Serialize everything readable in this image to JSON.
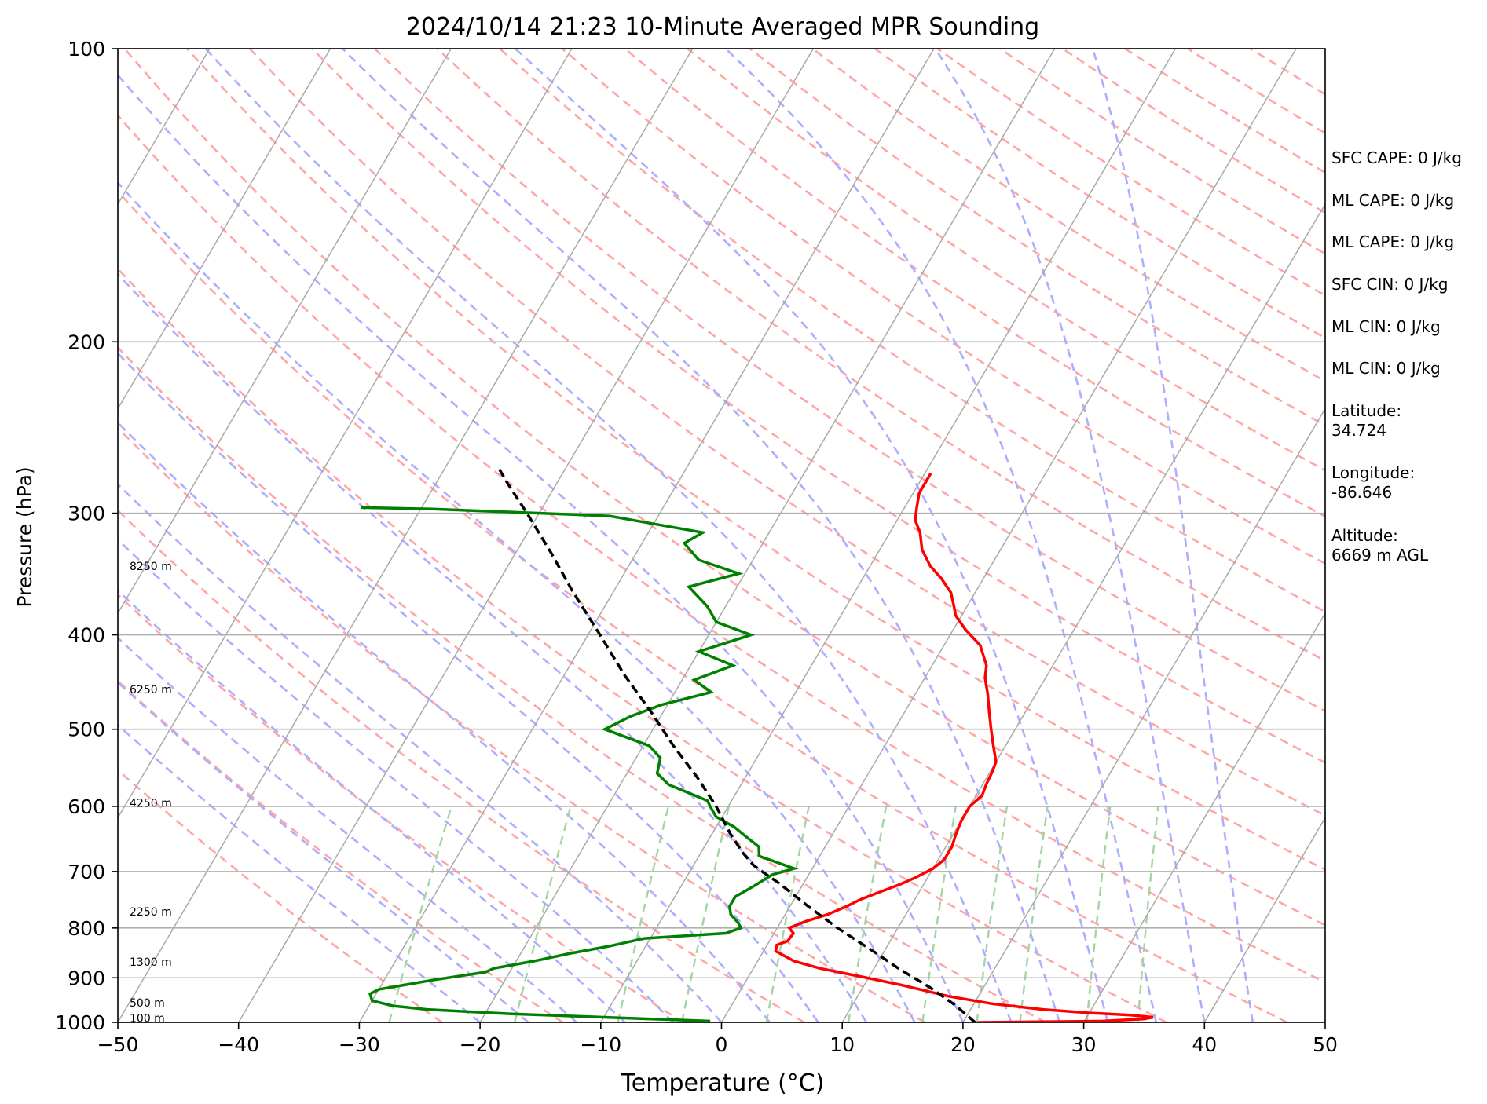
{
  "chart_data": {
    "type": "line",
    "title": "2024/10/14 21:23 10-Minute Averaged MPR Sounding",
    "xlabel": "Temperature (°C)",
    "ylabel": "Pressure (hPa)",
    "xlim": [
      -50,
      50
    ],
    "ylim": [
      1000,
      100
    ],
    "y_scale": "log",
    "skew": "skew-T (isotherms slanted)",
    "grid": true,
    "x_ticks": [
      "−50",
      "−40",
      "−30",
      "−20",
      "−10",
      "0",
      "10",
      "20",
      "30",
      "40",
      "50"
    ],
    "x_tick_values": [
      -50,
      -40,
      -30,
      -20,
      -10,
      0,
      10,
      20,
      30,
      40,
      50
    ],
    "y_ticks": [
      "100",
      "200",
      "300",
      "400",
      "500",
      "600",
      "700",
      "800",
      "900",
      "1000"
    ],
    "y_tick_values": [
      100,
      200,
      300,
      400,
      500,
      600,
      700,
      800,
      900,
      1000
    ],
    "colors": {
      "temperature": "#ff0000",
      "dewpoint": "#008000",
      "parcel": "#000000",
      "isotherm": "#a9a9a9",
      "dry_adiabat": "#ffa7a7",
      "moist_adiabat": "#aeaeff",
      "mixing_ratio": "#a3d5a3"
    },
    "series": [
      {
        "key": "temperature",
        "values": [
          [
            1000,
            21.2
          ],
          [
            997,
            31.5
          ],
          [
            992,
            34.8
          ],
          [
            988,
            35.5
          ],
          [
            983,
            33.5
          ],
          [
            978,
            30.0
          ],
          [
            970,
            26.0
          ],
          [
            957,
            21.5
          ],
          [
            940,
            17.5
          ],
          [
            915,
            13.0
          ],
          [
            896,
            9.0
          ],
          [
            880,
            5.5
          ],
          [
            865,
            3.0
          ],
          [
            845,
            1.0
          ],
          [
            833,
            0.8
          ],
          [
            825,
            1.5
          ],
          [
            810,
            1.6
          ],
          [
            800,
            1.0
          ],
          [
            788,
            2.0
          ],
          [
            775,
            3.5
          ],
          [
            760,
            4.7
          ],
          [
            748,
            5.5
          ],
          [
            737,
            6.5
          ],
          [
            722,
            8.0
          ],
          [
            710,
            9.0
          ],
          [
            695,
            10.0
          ],
          [
            680,
            10.5
          ],
          [
            660,
            10.5
          ],
          [
            640,
            10.2
          ],
          [
            620,
            10.0
          ],
          [
            600,
            10.0
          ],
          [
            585,
            10.5
          ],
          [
            570,
            10.3
          ],
          [
            555,
            10.2
          ],
          [
            540,
            10.0
          ],
          [
            520,
            9.0
          ],
          [
            500,
            8.0
          ],
          [
            480,
            7.0
          ],
          [
            460,
            6.0
          ],
          [
            443,
            5.0
          ],
          [
            430,
            4.5
          ],
          [
            410,
            3.0
          ],
          [
            395,
            1.0
          ],
          [
            382,
            -0.5
          ],
          [
            375,
            -1.0
          ],
          [
            362,
            -2.0
          ],
          [
            350,
            -3.5
          ],
          [
            340,
            -5.0
          ],
          [
            327,
            -6.5
          ],
          [
            314,
            -7.5
          ],
          [
            305,
            -8.5
          ],
          [
            296,
            -9.0
          ],
          [
            286,
            -9.5
          ],
          [
            273,
            -9.5
          ]
        ]
      },
      {
        "key": "dewpoint",
        "values": [
          [
            1000,
            -1.7
          ],
          [
            999,
            -3.0
          ],
          [
            997,
            -1.0
          ],
          [
            990,
            -8.0
          ],
          [
            980,
            -18.0
          ],
          [
            970,
            -25.0
          ],
          [
            962,
            -28.0
          ],
          [
            950,
            -30.0
          ],
          [
            935,
            -30.5
          ],
          [
            925,
            -30.0
          ],
          [
            905,
            -26.0
          ],
          [
            888,
            -22.0
          ],
          [
            880,
            -21.5
          ],
          [
            865,
            -18.5
          ],
          [
            850,
            -16.0
          ],
          [
            835,
            -13.0
          ],
          [
            820,
            -10.5
          ],
          [
            810,
            -4.0
          ],
          [
            800,
            -3.0
          ],
          [
            790,
            -3.5
          ],
          [
            775,
            -4.5
          ],
          [
            760,
            -5.0
          ],
          [
            743,
            -5.0
          ],
          [
            725,
            -4.0
          ],
          [
            705,
            -3.0
          ],
          [
            695,
            -1.5
          ],
          [
            675,
            -5.0
          ],
          [
            660,
            -5.5
          ],
          [
            645,
            -7.0
          ],
          [
            630,
            -8.5
          ],
          [
            615,
            -10.5
          ],
          [
            600,
            -11.5
          ],
          [
            592,
            -12.0
          ],
          [
            570,
            -16.0
          ],
          [
            555,
            -17.5
          ],
          [
            535,
            -18.0
          ],
          [
            520,
            -19.5
          ],
          [
            500,
            -24.0
          ],
          [
            485,
            -22.5
          ],
          [
            472,
            -20.5
          ],
          [
            458,
            -17.0
          ],
          [
            445,
            -19.0
          ],
          [
            430,
            -16.5
          ],
          [
            416,
            -20.0
          ],
          [
            400,
            -16.5
          ],
          [
            388,
            -20.0
          ],
          [
            374,
            -21.5
          ],
          [
            357,
            -24.0
          ],
          [
            346,
            -20.5
          ],
          [
            335,
            -24.5
          ],
          [
            322,
            -26.5
          ],
          [
            314,
            -25.5
          ],
          [
            302,
            -34.0
          ],
          [
            297,
            -49.0
          ],
          [
            296,
            -55.0
          ]
        ]
      },
      {
        "key": "parcel",
        "values": [
          [
            1000,
            21.0
          ],
          [
            960,
            18.5
          ],
          [
            920,
            15.5
          ],
          [
            880,
            12.0
          ],
          [
            850,
            9.5
          ],
          [
            800,
            5.0
          ],
          [
            760,
            1.5
          ],
          [
            720,
            -2.0
          ],
          [
            700,
            -4.0
          ],
          [
            690,
            -5.0
          ],
          [
            670,
            -6.5
          ],
          [
            640,
            -8.5
          ],
          [
            600,
            -11.0
          ],
          [
            560,
            -14.0
          ],
          [
            520,
            -17.5
          ],
          [
            480,
            -21.0
          ],
          [
            440,
            -25.0
          ],
          [
            400,
            -29.0
          ],
          [
            360,
            -33.5
          ],
          [
            330,
            -37.0
          ],
          [
            300,
            -41.0
          ],
          [
            280,
            -44.0
          ],
          [
            270,
            -45.5
          ]
        ]
      }
    ],
    "height_labels": [
      {
        "text": "100 m",
        "pressure": 990
      },
      {
        "text": "500 m",
        "pressure": 955
      },
      {
        "text": "1300 m",
        "pressure": 867
      },
      {
        "text": "2250 m",
        "pressure": 770
      },
      {
        "text": "4250 m",
        "pressure": 595
      },
      {
        "text": "6250 m",
        "pressure": 455
      },
      {
        "text": "8250 m",
        "pressure": 340
      }
    ]
  },
  "info": [
    {
      "text": "SFC CAPE: 0 J/kg"
    },
    {
      "text": "ML CAPE: 0 J/kg"
    },
    {
      "text": "ML CAPE: 0 J/kg"
    },
    {
      "text": "SFC CIN: 0 J/kg"
    },
    {
      "text": "ML CIN: 0 J/kg"
    },
    {
      "text": "ML CIN: 0 J/kg"
    },
    {
      "text": "Latitude:\n34.724"
    },
    {
      "text": "Longitude:\n-86.646"
    },
    {
      "text": "Altitude:\n6669 m AGL"
    }
  ]
}
